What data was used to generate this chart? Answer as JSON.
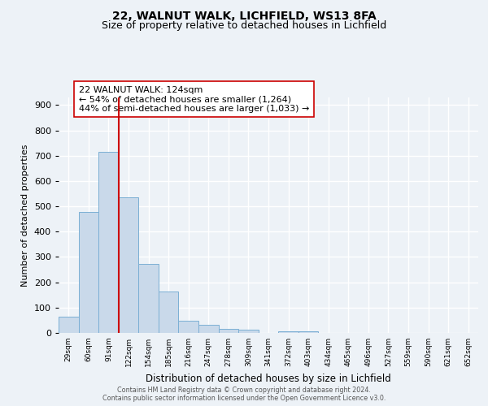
{
  "title1": "22, WALNUT WALK, LICHFIELD, WS13 8FA",
  "title2": "Size of property relative to detached houses in Lichfield",
  "xlabel": "Distribution of detached houses by size in Lichfield",
  "ylabel": "Number of detached properties",
  "bar_labels": [
    "29sqm",
    "60sqm",
    "91sqm",
    "122sqm",
    "154sqm",
    "185sqm",
    "216sqm",
    "247sqm",
    "278sqm",
    "309sqm",
    "341sqm",
    "372sqm",
    "403sqm",
    "434sqm",
    "465sqm",
    "496sqm",
    "527sqm",
    "559sqm",
    "590sqm",
    "621sqm",
    "652sqm"
  ],
  "bar_values": [
    63,
    478,
    715,
    537,
    272,
    165,
    47,
    33,
    15,
    12,
    0,
    7,
    8,
    0,
    0,
    0,
    0,
    0,
    0,
    0,
    0
  ],
  "bar_color": "#c9d9ea",
  "bar_edgecolor": "#7bafd4",
  "vline_index": 3,
  "vline_color": "#cc0000",
  "annotation_text": "22 WALNUT WALK: 124sqm\n← 54% of detached houses are smaller (1,264)\n44% of semi-detached houses are larger (1,033) →",
  "annotation_box_edgecolor": "#cc0000",
  "annotation_box_facecolor": "#ffffff",
  "ylim": [
    0,
    930
  ],
  "yticks": [
    0,
    100,
    200,
    300,
    400,
    500,
    600,
    700,
    800,
    900
  ],
  "footer_line1": "Contains HM Land Registry data © Crown copyright and database right 2024.",
  "footer_line2": "Contains public sector information licensed under the Open Government Licence v3.0.",
  "background_color": "#edf2f7",
  "grid_color": "#ffffff",
  "title1_fontsize": 10,
  "title2_fontsize": 9
}
